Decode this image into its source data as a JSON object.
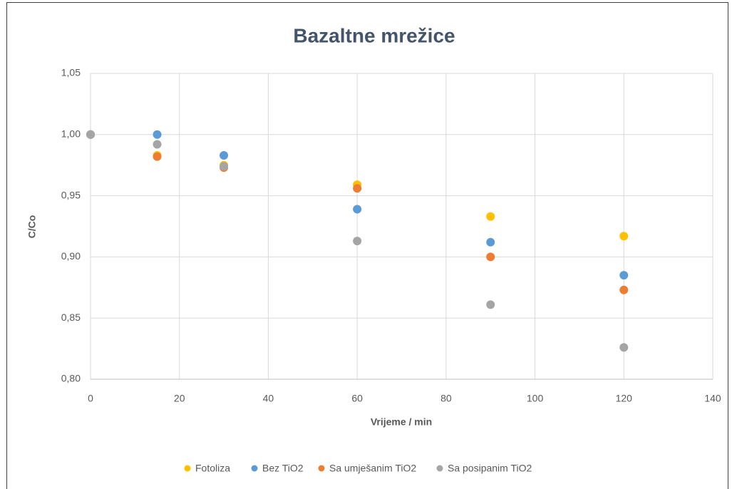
{
  "chart_data": {
    "type": "scatter",
    "title": "Bazaltne mrežice",
    "x_label": "Vrijeme / min",
    "y_label": "C/Co",
    "xlim": [
      0,
      140
    ],
    "xticks": [
      0,
      20,
      40,
      60,
      80,
      100,
      120,
      140
    ],
    "ylim": [
      0.8,
      1.05
    ],
    "yticks": [
      {
        "value": 0.8,
        "label": "0,80"
      },
      {
        "value": 0.85,
        "label": "0,85"
      },
      {
        "value": 0.9,
        "label": "0,90"
      },
      {
        "value": 0.95,
        "label": "0,95"
      },
      {
        "value": 1.0,
        "label": "1,00"
      },
      {
        "value": 1.05,
        "label": "1,05"
      }
    ],
    "grid": true,
    "legend": "bottom",
    "series": [
      {
        "name": "Fotoliza",
        "color": "#ffc000",
        "x": [
          0,
          15,
          30,
          60,
          90,
          120
        ],
        "values": [
          1.0,
          0.983,
          0.975,
          0.959,
          0.933,
          0.917
        ]
      },
      {
        "name": "Bez TiO2",
        "color": "#5b9bd5",
        "x": [
          0,
          15,
          30,
          60,
          90,
          120
        ],
        "values": [
          1.0,
          1.0,
          0.983,
          0.939,
          0.912,
          0.885
        ]
      },
      {
        "name": "Sa umješanim TiO2",
        "color": "#ed7d31",
        "x": [
          0,
          15,
          30,
          60,
          90,
          120
        ],
        "values": [
          1.0,
          0.982,
          0.973,
          0.956,
          0.9,
          0.873
        ]
      },
      {
        "name": "Sa posipanim TiO2",
        "color": "#a5a5a5",
        "x": [
          0,
          15,
          30,
          60,
          90,
          120
        ],
        "values": [
          1.0,
          0.992,
          0.974,
          0.913,
          0.861,
          0.826
        ]
      }
    ]
  }
}
